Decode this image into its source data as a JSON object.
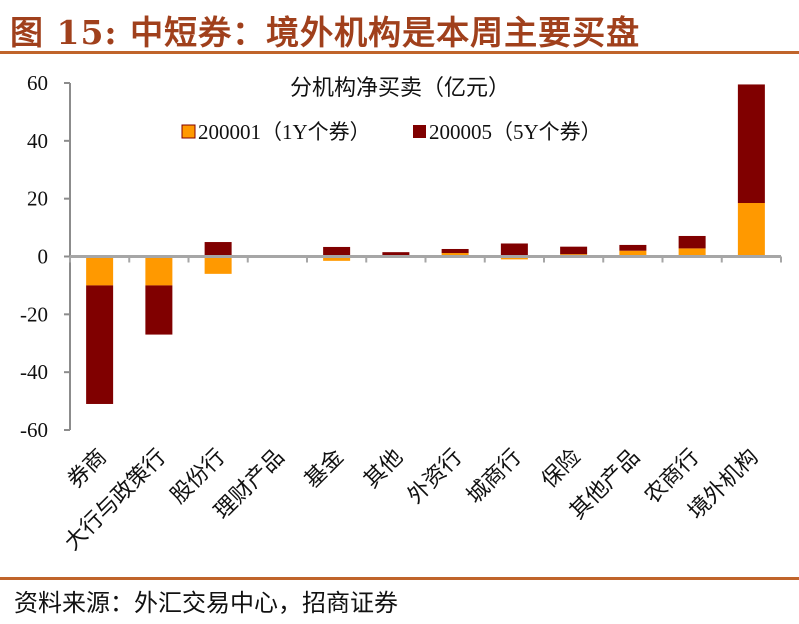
{
  "figure_title": "图 15:  中短券：境外机构是本周主要买盘",
  "source": "资料来源：外汇交易中心，招商证券",
  "chart_data": {
    "type": "bar",
    "stacked": true,
    "title": "分机构净买卖（亿元）",
    "xlabel": "",
    "ylabel": "",
    "ylim": [
      -60,
      60
    ],
    "yticks": [
      60,
      40,
      20,
      0,
      -20,
      -40,
      -60
    ],
    "grid": false,
    "legend_position": "top-center",
    "categories": [
      "券商",
      "大行与政策行",
      "股份行",
      "理财产品",
      "基金",
      "其他",
      "外资行",
      "城商行",
      "保险",
      "其他产品",
      "农商行",
      "境外机构"
    ],
    "series": [
      {
        "name": "200001（1Y个券）",
        "color": "#ff9900",
        "values": [
          -10,
          -10,
          -6,
          0,
          -1.5,
          0,
          1.2,
          -1,
          0.8,
          2,
          2.8,
          18.5
        ]
      },
      {
        "name": "200005（5Y个券）",
        "color": "#800000",
        "values": [
          -41,
          -17,
          5,
          0,
          3.3,
          1.5,
          1.4,
          4.5,
          2.6,
          2,
          4.3,
          41
        ]
      }
    ]
  }
}
